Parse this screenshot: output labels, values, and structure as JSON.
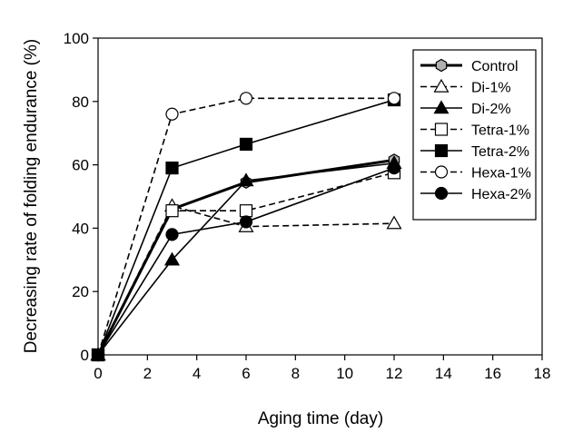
{
  "chart_data": {
    "type": "line",
    "title": "",
    "xlabel": "Aging time (day)",
    "ylabel": "Decreasing rate of folding endurance (%)",
    "xlim": [
      0,
      18
    ],
    "ylim": [
      0,
      100
    ],
    "xticks": [
      0,
      2,
      4,
      6,
      8,
      10,
      12,
      14,
      16,
      18
    ],
    "yticks": [
      0,
      20,
      40,
      60,
      80,
      100
    ],
    "grid": false,
    "legend_position": "top-right",
    "x": [
      0,
      3,
      6,
      12
    ],
    "series": [
      {
        "name": "Control",
        "values": [
          0,
          46,
          54.5,
          61.5
        ],
        "marker": "hexagon",
        "filled": true,
        "fill": "#b0b0b0",
        "dash": "solid",
        "weight": "heavy"
      },
      {
        "name": "Di-1%",
        "values": [
          0,
          47,
          40.5,
          41.5
        ],
        "marker": "triangle",
        "filled": false,
        "fill": "#ffffff",
        "dash": "dashed",
        "weight": "normal"
      },
      {
        "name": "Di-2%",
        "values": [
          0,
          30,
          55,
          60.5
        ],
        "marker": "triangle",
        "filled": true,
        "fill": "#000000",
        "dash": "solid",
        "weight": "normal"
      },
      {
        "name": "Tetra-1%",
        "values": [
          0,
          45.5,
          45.5,
          57.5
        ],
        "marker": "square",
        "filled": false,
        "fill": "#ffffff",
        "dash": "dashed",
        "weight": "normal"
      },
      {
        "name": "Tetra-2%",
        "values": [
          0,
          59,
          66.5,
          80.5
        ],
        "marker": "square",
        "filled": true,
        "fill": "#000000",
        "dash": "solid",
        "weight": "normal"
      },
      {
        "name": "Hexa-1%",
        "values": [
          0,
          76,
          81,
          81
        ],
        "marker": "circle",
        "filled": false,
        "fill": "#ffffff",
        "dash": "dashed",
        "weight": "normal"
      },
      {
        "name": "Hexa-2%",
        "values": [
          0,
          38,
          42,
          59
        ],
        "marker": "circle",
        "filled": true,
        "fill": "#000000",
        "dash": "solid",
        "weight": "normal"
      }
    ]
  }
}
